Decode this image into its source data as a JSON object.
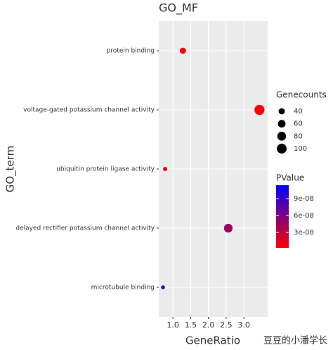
{
  "chart_data": {
    "type": "scatter",
    "title": "GO_MF",
    "x_label": "GeneRatio",
    "y_label": "GO_term",
    "categories": [
      "protein binding",
      "voltage-gated potassium channel activity",
      "ubiquitin protein ligase activity",
      "delayed rectifier potassium channel activity",
      "microtubule binding"
    ],
    "x": [
      1.28,
      3.44,
      0.78,
      2.56,
      0.72
    ],
    "sizes": [
      40,
      105,
      18,
      78,
      15
    ],
    "pvalues": [
      5e-09,
      2.5e-09,
      8e-09,
      4.5e-08,
      1.14e-07
    ],
    "xlim": [
      0.6,
      3.67
    ],
    "xticks": [
      {
        "value": 1,
        "label": "1.0"
      },
      1.5,
      {
        "value": 2,
        "label": "2.0"
      },
      2.5,
      {
        "value": 3,
        "label": "3.0"
      }
    ],
    "size_legend_title": "Genecounts",
    "size_legend": [
      40,
      60,
      80,
      100
    ],
    "color_legend_title": "PValue",
    "color_low": "#ff0000",
    "color_high": "#0000ff",
    "color_lim": [
      2.5e-09,
      1.14e-07
    ],
    "color_ticks": [
      {
        "value": 3e-08,
        "label": "3e-08"
      },
      {
        "value": 6e-08,
        "label": "6e-08"
      },
      {
        "value": 9e-08,
        "label": "9e-08"
      }
    ],
    "grid": true,
    "watermark": "豆豆的小潘学长"
  }
}
